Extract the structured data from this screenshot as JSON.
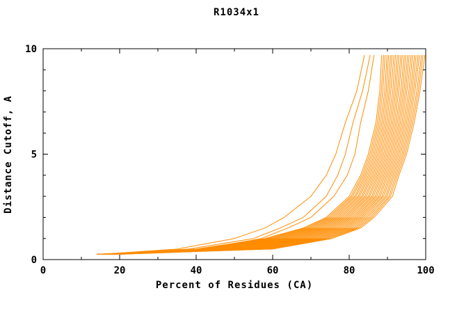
{
  "page": {
    "title": "R1034x1"
  },
  "chart_data": {
    "type": "line",
    "title": "R1034x1",
    "xlabel": "Percent of Residues (CA)",
    "ylabel": "Distance Cutoff, A",
    "xlim": [
      0,
      100
    ],
    "ylim": [
      0,
      10
    ],
    "x_ticks": [
      0,
      20,
      40,
      60,
      80,
      100
    ],
    "x_minor_ticks": [
      10,
      30,
      50,
      70,
      90
    ],
    "y_ticks": [
      0,
      5,
      10
    ],
    "y_minor_ticks": [
      1,
      2,
      3,
      4,
      6,
      7,
      8,
      9
    ],
    "grid": false,
    "legend": "none",
    "line_color": "#FF8C00",
    "background": "#FFFFFF",
    "y_levels": [
      0.25,
      0.5,
      1,
      1.5,
      2,
      3,
      4,
      5,
      6.5,
      8,
      9.7
    ],
    "series": [
      [
        14,
        40,
        58,
        68,
        74,
        80,
        83,
        85,
        87,
        88,
        88.5
      ],
      [
        15.5,
        40.8,
        58.7,
        68.6,
        74.5,
        80.5,
        83.4,
        85.4,
        87.4,
        88.4,
        89
      ],
      [
        17,
        41.6,
        59.4,
        69.2,
        75,
        80.9,
        83.8,
        85.8,
        87.8,
        88.8,
        89.4
      ],
      [
        18.5,
        42.4,
        60.1,
        69.8,
        75.5,
        81.4,
        84.2,
        86.2,
        88.2,
        89.3,
        89.9
      ],
      [
        20,
        43.2,
        60.8,
        70.4,
        76,
        81.8,
        84.6,
        86.6,
        88.6,
        89.7,
        90.3
      ],
      [
        14,
        44,
        61.5,
        71,
        76.5,
        82.3,
        85,
        87,
        89,
        90.1,
        90.8
      ],
      [
        15.5,
        44.8,
        62.2,
        71.6,
        77,
        82.7,
        85.4,
        87.4,
        89.4,
        90.5,
        91.2
      ],
      [
        17,
        45.6,
        62.9,
        72.2,
        77.5,
        83.2,
        85.8,
        87.8,
        89.8,
        90.9,
        91.7
      ],
      [
        18.5,
        46.4,
        63.6,
        72.8,
        78,
        83.6,
        86.2,
        88.2,
        90.2,
        91.4,
        92.1
      ],
      [
        20,
        47.2,
        64.3,
        73.4,
        78.5,
        84.1,
        86.6,
        88.6,
        90.6,
        91.8,
        92.6
      ],
      [
        14,
        48,
        65,
        74,
        79,
        84.5,
        87,
        89,
        91,
        92.2,
        93
      ],
      [
        15.5,
        48.8,
        65.7,
        74.6,
        79.5,
        85,
        87.4,
        89.4,
        91.4,
        92.6,
        93.5
      ],
      [
        17,
        49.6,
        66.4,
        75.2,
        80,
        85.4,
        87.8,
        89.8,
        91.8,
        93,
        93.9
      ],
      [
        18.5,
        50.4,
        67.1,
        75.8,
        80.5,
        85.9,
        88.2,
        90.2,
        92.2,
        93.5,
        94.4
      ],
      [
        20,
        51.2,
        67.8,
        76.4,
        81,
        86.3,
        88.6,
        90.6,
        92.6,
        93.9,
        94.8
      ],
      [
        14,
        52,
        68.5,
        77,
        81.5,
        86.8,
        89,
        91,
        93,
        94.3,
        95.3
      ],
      [
        15.5,
        52.8,
        69.2,
        77.6,
        82,
        87.2,
        89.4,
        91.4,
        93.4,
        94.7,
        95.7
      ],
      [
        17,
        53.6,
        69.9,
        78.2,
        82.5,
        87.7,
        89.8,
        91.8,
        93.8,
        95.1,
        96.2
      ],
      [
        18.5,
        54.4,
        70.6,
        78.8,
        83,
        88.1,
        90.2,
        92.2,
        94.2,
        95.6,
        96.6
      ],
      [
        20,
        55.2,
        71.3,
        79.4,
        83.5,
        88.6,
        90.6,
        92.6,
        94.6,
        96,
        97.1
      ],
      [
        14,
        56,
        72,
        80,
        84,
        89,
        91,
        93,
        95,
        96.4,
        97.5
      ],
      [
        15.5,
        56.8,
        72.7,
        80.6,
        84.5,
        89.5,
        91.4,
        93.4,
        95.4,
        96.8,
        98
      ],
      [
        17,
        57.6,
        73.4,
        81.2,
        85,
        89.9,
        91.8,
        93.8,
        95.8,
        97.2,
        98.4
      ],
      [
        18.5,
        58.4,
        74.1,
        81.8,
        85.5,
        90.4,
        92.2,
        94.2,
        96.2,
        97.7,
        98.9
      ],
      [
        20,
        59.2,
        74.8,
        82.4,
        86,
        90.8,
        92.6,
        94.6,
        96.6,
        98.1,
        99.3
      ],
      [
        14,
        60,
        75.5,
        83,
        86.5,
        91.3,
        93,
        95,
        97,
        98.5,
        99.8
      ],
      [
        15,
        35,
        50,
        58,
        63,
        70,
        74,
        76.5,
        79,
        82,
        84
      ],
      [
        16,
        38,
        55,
        62,
        68,
        74,
        77,
        79,
        81,
        83.5,
        85.5
      ],
      [
        18,
        42,
        57,
        64,
        70,
        76,
        79.5,
        81.5,
        83,
        85,
        86.5
      ]
    ]
  }
}
